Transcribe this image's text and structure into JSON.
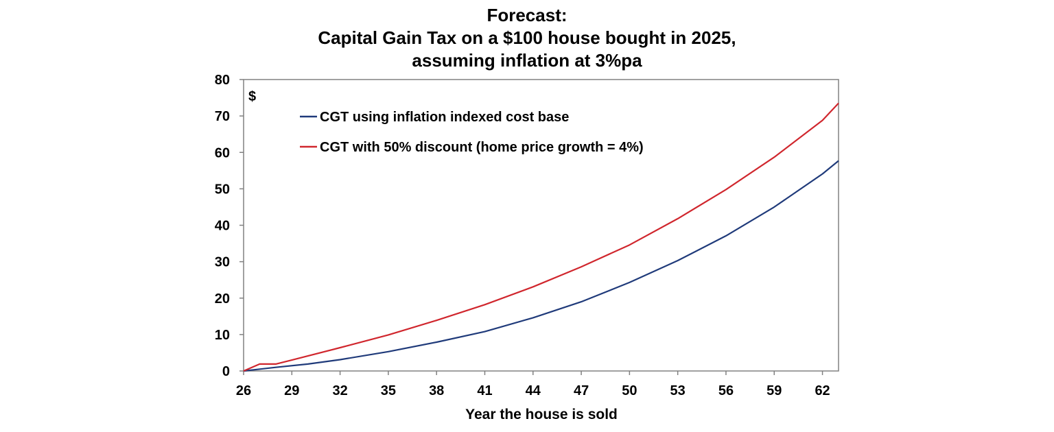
{
  "chart_data": {
    "type": "line",
    "title": [
      "Forecast:",
      "Capital Gain Tax on a $100 house bought in 2025,",
      "assuming inflation at 3%pa"
    ],
    "xlabel": "Year the house is sold",
    "ylabel": "$",
    "xlim": [
      26,
      63
    ],
    "ylim": [
      0,
      80
    ],
    "xticks": [
      26,
      29,
      32,
      35,
      38,
      41,
      44,
      47,
      50,
      53,
      56,
      59,
      62
    ],
    "yticks": [
      0,
      10,
      20,
      30,
      40,
      50,
      60,
      70,
      80
    ],
    "grid": false,
    "legend_position": "top-left",
    "series": [
      {
        "name": "CGT using inflation indexed cost base",
        "color": "#1f3a7a",
        "x": [
          26,
          28,
          30,
          32,
          35,
          38,
          41,
          44,
          47,
          50,
          53,
          56,
          59,
          62,
          63
        ],
        "y": [
          0,
          1,
          1.9,
          3.1,
          5.3,
          7.9,
          10.8,
          14.6,
          19,
          24.3,
          30.3,
          37.1,
          45,
          54.1,
          57.7
        ]
      },
      {
        "name": "CGT with 50% discount (home price growth = 4%)",
        "color": "#d0262d",
        "x": [
          26,
          27,
          28,
          29,
          32,
          35,
          38,
          41,
          44,
          47,
          50,
          53,
          56,
          59,
          62,
          63
        ],
        "y": [
          0,
          1.9,
          1.9,
          3,
          6.4,
          9.9,
          13.9,
          18.2,
          23.1,
          28.6,
          34.6,
          41.8,
          49.8,
          58.7,
          68.8,
          73.5
        ]
      }
    ]
  }
}
